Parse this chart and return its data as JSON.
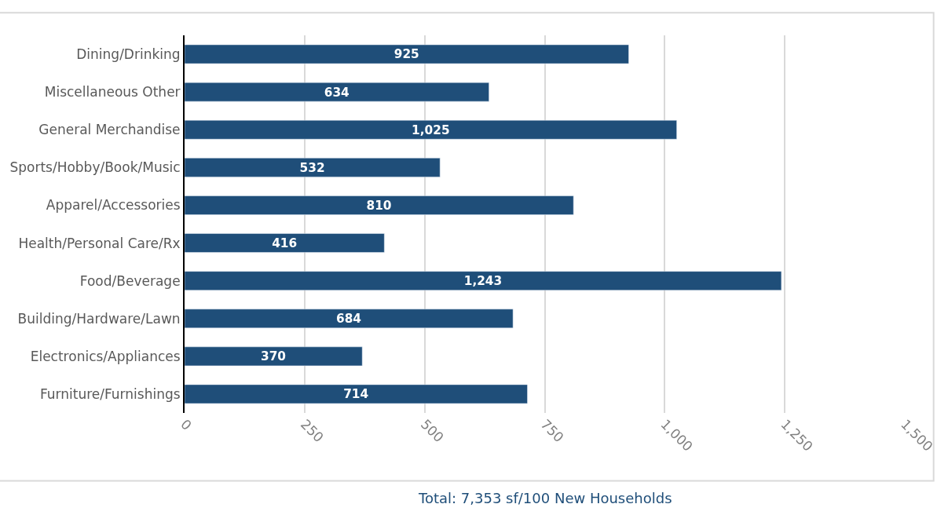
{
  "chart_data": {
    "type": "bar",
    "orientation": "horizontal",
    "categories": [
      "Dining/Drinking",
      "Miscellaneous Other",
      "General Merchandise",
      "Sports/Hobby/Book/Music",
      "Apparel/Accessories",
      "Health/Personal Care/Rx",
      "Food/Beverage",
      "Building/Hardware/Lawn",
      "Electronics/Appliances",
      "Furniture/Furnishings"
    ],
    "values": [
      925,
      634,
      1025,
      532,
      810,
      416,
      1243,
      684,
      370,
      714
    ],
    "value_labels": [
      "925",
      "634",
      "1,025",
      "532",
      "810",
      "416",
      "1,243",
      "684",
      "370",
      "714"
    ],
    "color": "#1f4e79",
    "xlim": [
      0,
      1500
    ],
    "xticks": [
      0,
      250,
      500,
      750,
      {
        "value": 1000,
        "label": "1,000"
      },
      {
        "value": 1250,
        "label": "1,250"
      },
      {
        "value": 1500,
        "label": "1,500"
      }
    ],
    "grid": "x",
    "annotations": [
      "Total: 7,353 sf/100 New Households"
    ]
  }
}
